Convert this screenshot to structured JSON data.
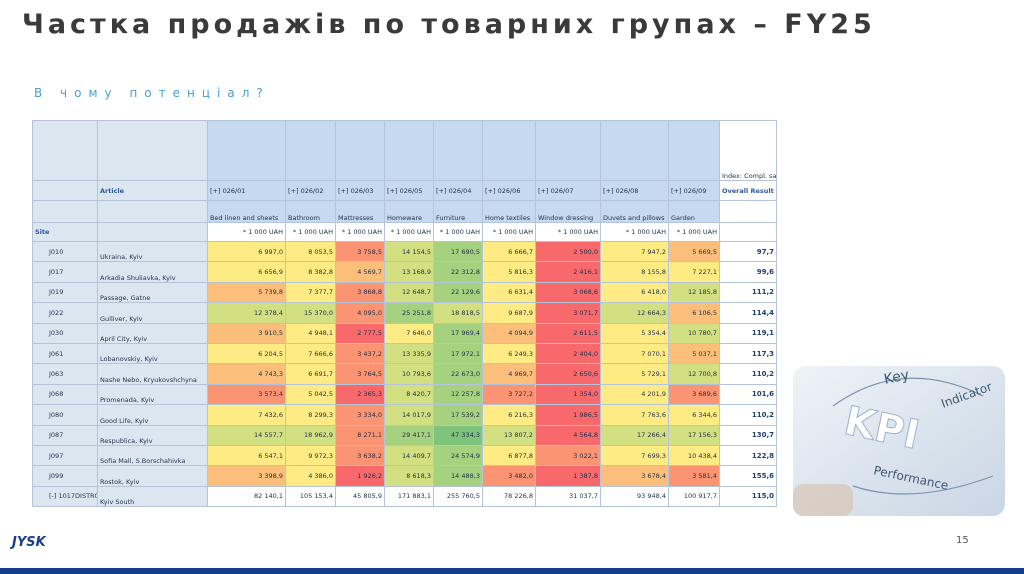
{
  "header": {
    "title": "Частка продажів по товарних групах – FY25",
    "subtitle": "В чому потенціал?"
  },
  "table": {
    "index_header": "Index:\nCompl.\nsales\nref. day",
    "article_label": "Article",
    "overall_label": "Overall Result",
    "site_label": "Site",
    "group_codes": [
      "[+] 026/01",
      "[+] 026/02",
      "[+] 026/03",
      "[+] 026/05",
      "[+] 026/04",
      "[+] 026/06",
      "[+] 026/07",
      "[+] 026/08",
      "[+] 026/09"
    ],
    "group_names": [
      "Bed linen and sheets",
      "Bathroom",
      "Mattresses",
      "Homeware",
      "Furniture",
      "Home textiles",
      "Window dressing",
      "Duvets and pillows",
      "Garden"
    ],
    "units": [
      "* 1 000 UAH",
      "* 1 000 UAH",
      "* 1 000 UAH",
      "* 1 000 UAH",
      "* 1 000 UAH",
      "* 1 000 UAH",
      "* 1 000 UAH",
      "* 1 000 UAH",
      "* 1 000 UAH"
    ],
    "rows": [
      {
        "site": "J010",
        "article": "Ukraina, Kyiv",
        "values": [
          "6 997,0",
          "8 053,5",
          "3 758,5",
          "14 154,5",
          "17 690,5",
          "6 666,7",
          "2 500,0",
          "7 947,2",
          "5 669,5"
        ],
        "index": "97,7",
        "colors": [
          "#ffeb84",
          "#ffeb84",
          "#fa9473",
          "#d3e082",
          "#a6d27f",
          "#ffeb84",
          "#f8696b",
          "#ffeb84",
          "#fcbf7b"
        ]
      },
      {
        "site": "J017",
        "article": "Arkadia Shuliavka, Kyiv",
        "values": [
          "6 656,9",
          "8 382,8",
          "4 569,7",
          "13 168,9",
          "22 312,8",
          "5 816,3",
          "2 416,1",
          "8 155,8",
          "7 227,1"
        ],
        "index": "99,6",
        "colors": [
          "#ffeb84",
          "#ffeb84",
          "#fcbf7b",
          "#d3e082",
          "#a6d27f",
          "#ffeb84",
          "#f8696b",
          "#ffeb84",
          "#ffeb84"
        ]
      },
      {
        "site": "J019",
        "article": "Passage, Gatne",
        "values": [
          "5 739,8",
          "7 377,7",
          "3 868,8",
          "12 648,7",
          "22 129,6",
          "6 631,4",
          "3 068,6",
          "6 418,0",
          "12 185,8"
        ],
        "index": "111,2",
        "colors": [
          "#fcbf7b",
          "#ffeb84",
          "#fa9473",
          "#d3e082",
          "#a6d27f",
          "#ffeb84",
          "#f8696b",
          "#ffeb84",
          "#d3e082"
        ]
      },
      {
        "site": "J022",
        "article": "Gulliver, Kyiv",
        "values": [
          "12 378,4",
          "15 370,0",
          "4 095,0",
          "25 251,8",
          "18 818,5",
          "9 687,9",
          "3 071,7",
          "12 664,3",
          "6 106,5"
        ],
        "index": "114,4",
        "colors": [
          "#d3e082",
          "#d3e082",
          "#fa9473",
          "#a6d27f",
          "#d3e082",
          "#ffeb84",
          "#f8696b",
          "#d3e082",
          "#fcbf7b"
        ]
      },
      {
        "site": "J030",
        "article": "April City, Kyiv",
        "values": [
          "3 910,5",
          "4 948,1",
          "2 777,5",
          "7 646,0",
          "17 969,4",
          "4 094,9",
          "2 611,5",
          "5 354,4",
          "10 780,7"
        ],
        "index": "119,1",
        "colors": [
          "#fcbf7b",
          "#ffeb84",
          "#f8696b",
          "#ffeb84",
          "#a6d27f",
          "#fcbf7b",
          "#f8696b",
          "#ffeb84",
          "#d3e082"
        ]
      },
      {
        "site": "J061",
        "article": "Lobanovskiy, Kyiv",
        "values": [
          "6 204,5",
          "7 666,6",
          "3 437,2",
          "13 335,9",
          "17 972,1",
          "6 249,3",
          "2 404,0",
          "7 070,1",
          "5 037,1"
        ],
        "index": "117,3",
        "colors": [
          "#ffeb84",
          "#ffeb84",
          "#fa9473",
          "#d3e082",
          "#a6d27f",
          "#ffeb84",
          "#f8696b",
          "#ffeb84",
          "#fcbf7b"
        ]
      },
      {
        "site": "J063",
        "article": "Nashe Nebo, Kryukovshchyna",
        "values": [
          "4 743,3",
          "6 691,7",
          "3 764,5",
          "10 793,6",
          "22 673,0",
          "4 969,7",
          "2 650,6",
          "5 729,1",
          "12 700,8"
        ],
        "index": "110,2",
        "colors": [
          "#fcbf7b",
          "#ffeb84",
          "#fa9473",
          "#d3e082",
          "#a6d27f",
          "#fcbf7b",
          "#f8696b",
          "#ffeb84",
          "#d3e082"
        ]
      },
      {
        "site": "J068",
        "article": "Promenada, Kyiv",
        "values": [
          "3 573,4",
          "5 042,5",
          "2 365,3",
          "8 420,7",
          "12 257,8",
          "3 727,2",
          "1 354,0",
          "4 201,9",
          "3 689,6"
        ],
        "index": "101,6",
        "colors": [
          "#fa9473",
          "#ffeb84",
          "#f8696b",
          "#d3e082",
          "#a6d27f",
          "#fa9473",
          "#f8696b",
          "#ffeb84",
          "#fa9473"
        ]
      },
      {
        "site": "J080",
        "article": "Good Life, Kyiv",
        "values": [
          "7 432,6",
          "8 299,3",
          "3 334,0",
          "14 017,9",
          "17 539,2",
          "6 216,3",
          "1 986,5",
          "7 763,6",
          "6 344,6"
        ],
        "index": "110,2",
        "colors": [
          "#ffeb84",
          "#ffeb84",
          "#fa9473",
          "#d3e082",
          "#a6d27f",
          "#ffeb84",
          "#f8696b",
          "#ffeb84",
          "#ffeb84"
        ]
      },
      {
        "site": "J087",
        "article": "Respublica, Kyiv",
        "values": [
          "14 557,7",
          "18 962,9",
          "8 271,1",
          "29 417,1",
          "47 334,3",
          "13 807,2",
          "4 564,8",
          "17 266,4",
          "17 156,3"
        ],
        "index": "130,7",
        "colors": [
          "#d3e082",
          "#d3e082",
          "#fa9473",
          "#a6d27f",
          "#7fc47d",
          "#d3e082",
          "#f8696b",
          "#d3e082",
          "#d3e082"
        ]
      },
      {
        "site": "J097",
        "article": "Sofia Mall, S.Borschahivka",
        "values": [
          "6 547,1",
          "9 972,3",
          "3 638,2",
          "14 409,7",
          "24 574,9",
          "6 877,8",
          "3 022,1",
          "7 699,3",
          "10 438,4"
        ],
        "index": "122,8",
        "colors": [
          "#ffeb84",
          "#ffeb84",
          "#fa9473",
          "#d3e082",
          "#a6d27f",
          "#ffeb84",
          "#fa9473",
          "#ffeb84",
          "#ffeb84"
        ]
      },
      {
        "site": "J099",
        "article": "Rostok, Kyiv",
        "values": [
          "3 398,9",
          "4 386,0",
          "1 926,2",
          "8 618,3",
          "14 488,3",
          "3 482,0",
          "1 387,8",
          "3 678,4",
          "3 581,4"
        ],
        "index": "155,6",
        "colors": [
          "#fcbf7b",
          "#ffeb84",
          "#f8696b",
          "#d3e082",
          "#a6d27f",
          "#fa9473",
          "#f8696b",
          "#fcbf7b",
          "#fa9473"
        ]
      },
      {
        "site": "[-] 1017DISTR07",
        "article": "Kyiv South",
        "values": [
          "82 140,1",
          "105 153,4",
          "45 805,9",
          "171 883,1",
          "255 760,5",
          "78 226,8",
          "31 037,7",
          "93 948,4",
          "100 917,7"
        ],
        "index": "115,0",
        "colors": [
          "#ffffff",
          "#ffffff",
          "#ffffff",
          "#ffffff",
          "#ffffff",
          "#ffffff",
          "#ffffff",
          "#ffffff",
          "#ffffff"
        ]
      }
    ]
  },
  "image": {
    "labels": [
      "Key",
      "KPI",
      "Indicator",
      "Performance"
    ]
  },
  "footer": {
    "logo": "JYSK",
    "page": "15"
  }
}
